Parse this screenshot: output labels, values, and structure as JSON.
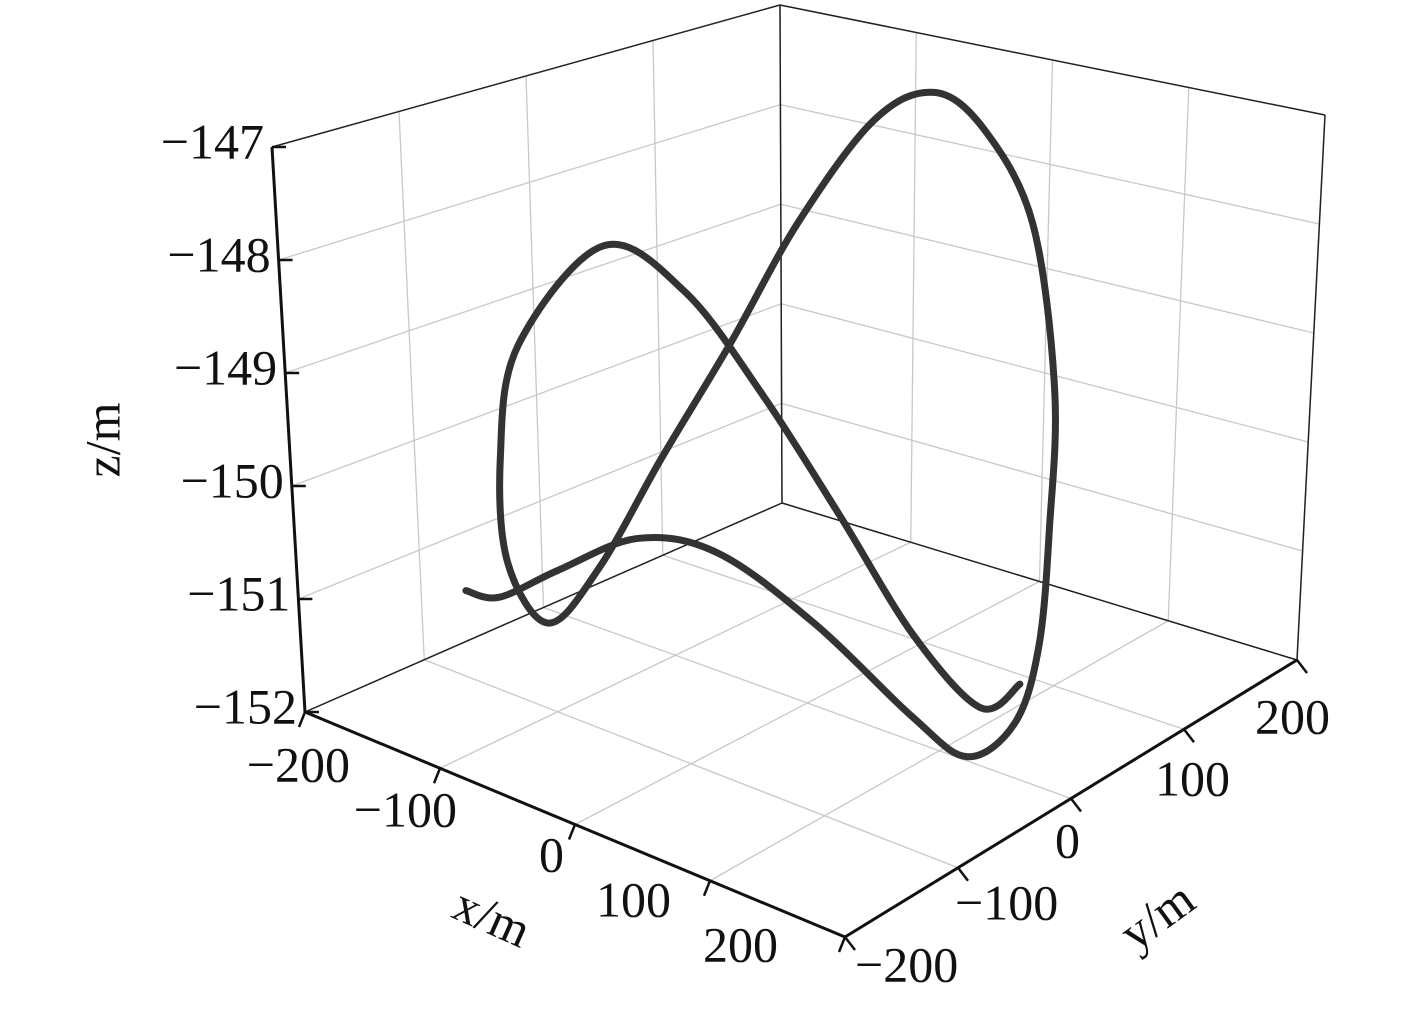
{
  "chart_data": {
    "type": "line3d",
    "xlabel": "x/m",
    "ylabel": "y/m",
    "zlabel": "z/m",
    "xlim": [
      -200,
      200
    ],
    "ylim": [
      -200,
      200
    ],
    "zlim": [
      -152,
      -147
    ],
    "xticks": [
      {
        "value": -200,
        "label": "−200"
      },
      {
        "value": -100,
        "label": "−100"
      },
      0,
      100,
      200
    ],
    "yticks": [
      {
        "value": -200,
        "label": "−200"
      },
      {
        "value": -100,
        "label": "−100"
      },
      0,
      100,
      200
    ],
    "zticks": [
      {
        "value": -152,
        "label": "−152"
      },
      {
        "value": -151,
        "label": "−151"
      },
      {
        "value": -150,
        "label": "−150"
      },
      {
        "value": -149,
        "label": "−149"
      },
      {
        "value": -148,
        "label": "−148"
      },
      {
        "value": -147,
        "label": "−147"
      }
    ],
    "grid": true,
    "color": "#333333",
    "x": [
      -170,
      -166,
      -152,
      -123,
      -90,
      -17,
      73,
      118,
      126,
      114,
      101,
      102,
      59,
      9,
      -14,
      -26,
      -46,
      -61,
      -85,
      -137,
      -158,
      -180,
      -179,
      -144,
      -99,
      -77,
      -50,
      -6,
      38,
      93,
      110
    ],
    "y": [
      -96,
      -73,
      -39,
      -4,
      26,
      26,
      7,
      4,
      36,
      69,
      90,
      89,
      117,
      133,
      117,
      81,
      42,
      3,
      -27,
      -22,
      -42,
      -50,
      -54,
      -76,
      -57,
      -16,
      18,
      33,
      48,
      44,
      58
    ],
    "z": [
      -151.25,
      -151.4,
      -151.25,
      -151,
      -151.15,
      -151.5,
      -151.85,
      -152,
      -151.85,
      -151.4,
      -150.5,
      -149.25,
      -148,
      -147.35,
      -147,
      -147.15,
      -148,
      -149,
      -150,
      -151.25,
      -151.75,
      -151.25,
      -150.25,
      -149,
      -148,
      -148.5,
      -149.5,
      -150.5,
      -151.5,
      -151.9,
      -151.7
    ]
  }
}
